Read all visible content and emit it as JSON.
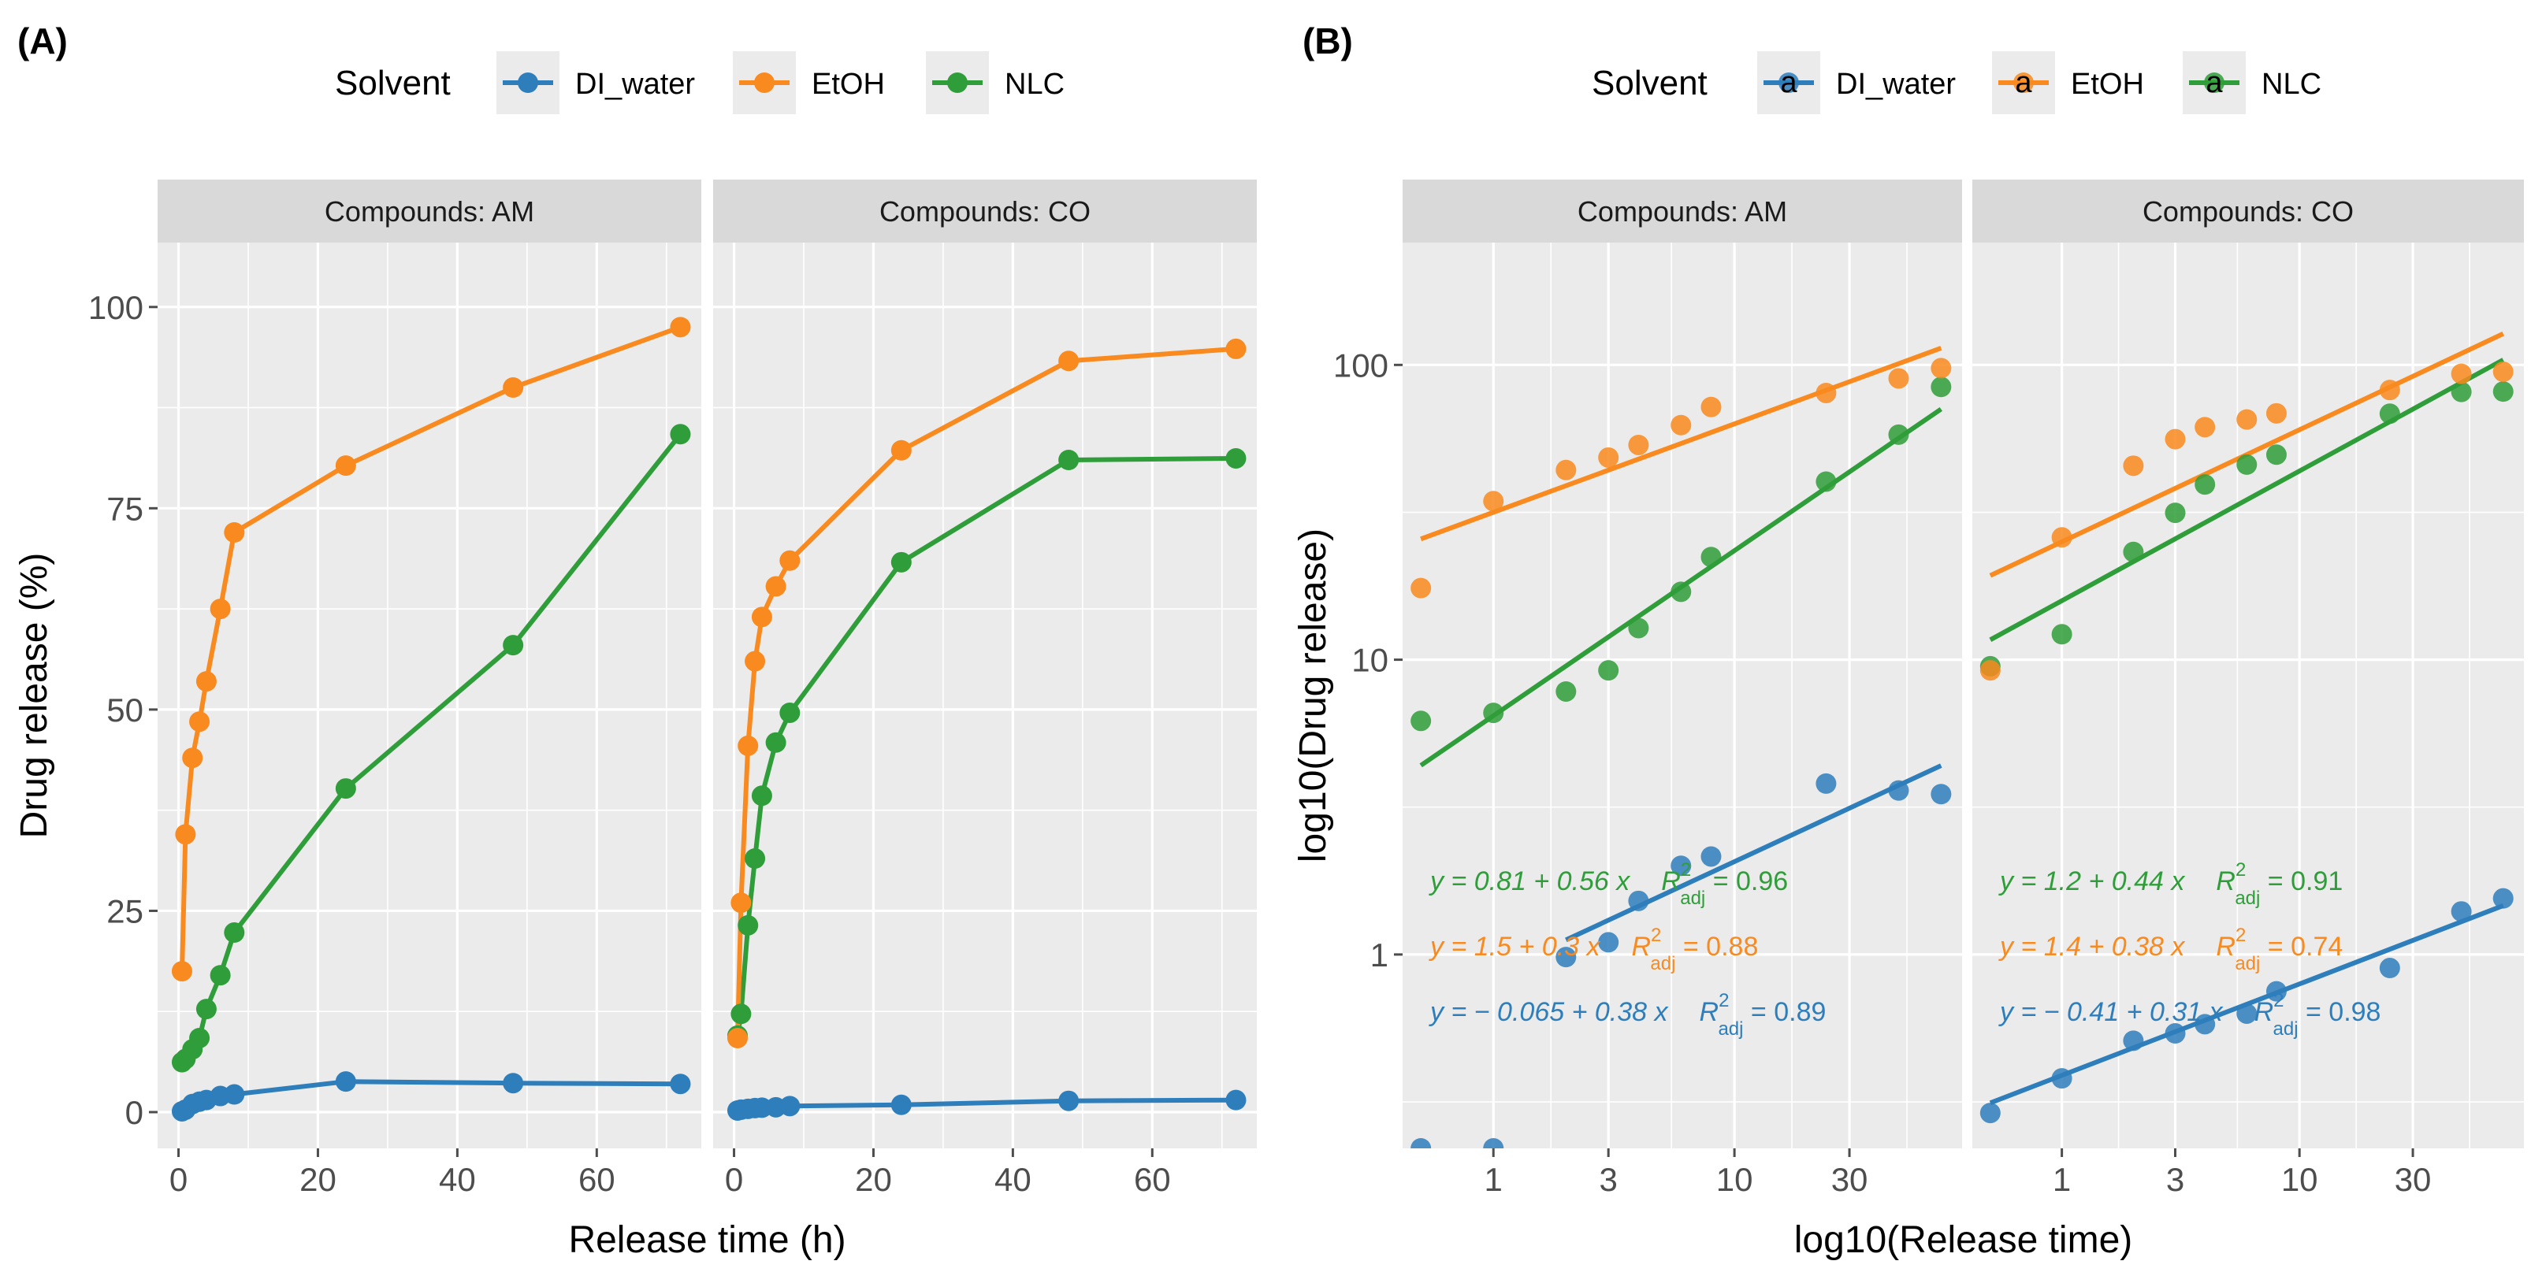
{
  "figure": {
    "panel_a_label": "(A)",
    "panel_b_label": "(B)"
  },
  "legend": {
    "title": "Solvent",
    "entries": [
      "DI_water",
      "EtOH",
      "NLC"
    ],
    "key_glyph": "a"
  },
  "colors": {
    "DI_water": "#2e7ebc",
    "EtOH": "#f98a1f",
    "NLC": "#2f9e3a",
    "panel_bg": "#ebebeb",
    "strip_bg": "#d9d9d9",
    "grid": "#ffffff",
    "tick": "#4d4d4d"
  },
  "chart_data": [
    {
      "type": "line",
      "panel": "A",
      "facets": [
        "Compounds: AM",
        "Compounds: CO"
      ],
      "xlabel": "Release time (h)",
      "ylabel": "Drug release (%)",
      "xlim": [
        -3,
        75
      ],
      "ylim": [
        -4.5,
        108
      ],
      "xticks": [
        0,
        20,
        40,
        60
      ],
      "yticks": [
        0,
        25,
        50,
        75,
        100
      ],
      "xtick_labels": [
        "0",
        "20",
        "40",
        "60"
      ],
      "ytick_labels": [
        "0",
        "25",
        "50",
        "75",
        "100"
      ],
      "x": [
        0.5,
        1,
        2,
        3,
        4,
        6,
        8,
        24,
        48,
        72
      ],
      "series": [
        {
          "facet": "Compounds: AM",
          "name": "DI_water",
          "values": [
            0.1,
            0.3,
            1.0,
            1.3,
            1.5,
            2.0,
            2.2,
            3.8,
            3.6,
            3.5
          ]
        },
        {
          "facet": "Compounds: AM",
          "name": "EtOH",
          "values": [
            17.5,
            34.5,
            44,
            48.5,
            53.5,
            62.5,
            72,
            80.3,
            90,
            97.5
          ]
        },
        {
          "facet": "Compounds: AM",
          "name": "NLC",
          "values": [
            6.2,
            6.6,
            7.8,
            9.2,
            12.8,
            17,
            22.3,
            40.2,
            58,
            84.2
          ]
        },
        {
          "facet": "Compounds: CO",
          "name": "DI_water",
          "values": [
            0.2,
            0.3,
            0.4,
            0.5,
            0.55,
            0.6,
            0.75,
            0.9,
            1.4,
            1.5
          ]
        },
        {
          "facet": "Compounds: CO",
          "name": "EtOH",
          "values": [
            9.2,
            26,
            45.5,
            56,
            61.5,
            65.3,
            68.5,
            82.2,
            93.3,
            94.8
          ]
        },
        {
          "facet": "Compounds: CO",
          "name": "NLC",
          "values": [
            9.5,
            12.2,
            23.2,
            31.5,
            39.3,
            45.9,
            49.6,
            68.3,
            81,
            81.2
          ]
        }
      ]
    },
    {
      "type": "scatter",
      "panel": "B",
      "scale": "log10",
      "facets": [
        "Compounds: AM",
        "Compounds: CO"
      ],
      "xlabel": "log10(Release time)",
      "ylabel": "log10(Drug release)",
      "xlim": [
        0.42,
        88
      ],
      "ylim": [
        0.22,
        260
      ],
      "xticks": [
        1,
        3,
        10,
        30
      ],
      "yticks": [
        1,
        10,
        100
      ],
      "xtick_labels": [
        "1",
        "3",
        "10",
        "30"
      ],
      "ytick_labels": [
        "1",
        "10",
        "100"
      ],
      "x": [
        0.5,
        1,
        2,
        3,
        4,
        6,
        8,
        24,
        48,
        72
      ],
      "series": [
        {
          "facet": "Compounds: AM",
          "name": "DI_water",
          "values": [
            0.22,
            0.22,
            0.98,
            1.1,
            1.52,
            2.0,
            2.15,
            3.8,
            3.6,
            3.5
          ]
        },
        {
          "facet": "Compounds: AM",
          "name": "EtOH",
          "values": [
            17.5,
            34.5,
            44,
            48.5,
            53.5,
            62.5,
            72,
            80.3,
            90,
            97.5
          ]
        },
        {
          "facet": "Compounds: AM",
          "name": "NLC",
          "values": [
            6.2,
            6.6,
            7.8,
            9.2,
            12.8,
            17,
            22.3,
            40.2,
            58,
            84.2
          ]
        },
        {
          "facet": "Compounds: CO",
          "name": "DI_water",
          "values": [
            0.29,
            0.38,
            0.51,
            0.54,
            0.58,
            0.63,
            0.75,
            0.9,
            1.4,
            1.55
          ]
        },
        {
          "facet": "Compounds: CO",
          "name": "EtOH",
          "values": [
            9.2,
            26,
            45.5,
            56,
            61.5,
            65.3,
            68.5,
            82.2,
            93.3,
            94.8
          ]
        },
        {
          "facet": "Compounds: CO",
          "name": "NLC",
          "values": [
            9.5,
            12.2,
            23.2,
            31.5,
            39.3,
            45.9,
            49.6,
            68.3,
            81,
            81.2
          ]
        }
      ],
      "fits": [
        {
          "facet": "Compounds: AM",
          "name": "DI_water",
          "intercept": -0.065,
          "slope": 0.38,
          "x_range": [
            2,
            72
          ]
        },
        {
          "facet": "Compounds: AM",
          "name": "EtOH",
          "intercept": 1.5,
          "slope": 0.3,
          "x_range": [
            0.5,
            72
          ]
        },
        {
          "facet": "Compounds: AM",
          "name": "NLC",
          "intercept": 0.81,
          "slope": 0.56,
          "x_range": [
            0.5,
            72
          ]
        },
        {
          "facet": "Compounds: CO",
          "name": "DI_water",
          "intercept": -0.41,
          "slope": 0.31,
          "x_range": [
            0.5,
            72
          ]
        },
        {
          "facet": "Compounds: CO",
          "name": "EtOH",
          "intercept": 1.4,
          "slope": 0.38,
          "x_range": [
            0.5,
            72
          ]
        },
        {
          "facet": "Compounds: CO",
          "name": "NLC",
          "intercept": 1.2,
          "slope": 0.44,
          "x_range": [
            0.5,
            72
          ]
        }
      ],
      "annotations": [
        {
          "facet": "Compounds: AM",
          "name": "NLC",
          "equation": "y = 0.81 + 0.56 x",
          "r2_label": "R",
          "r2_sup": "2",
          "r2_sub": "adj",
          "r2_value": " = 0.96"
        },
        {
          "facet": "Compounds: AM",
          "name": "EtOH",
          "equation": "y = 1.5 + 0.3 x",
          "r2_label": "R",
          "r2_sup": "2",
          "r2_sub": "adj",
          "r2_value": " = 0.88"
        },
        {
          "facet": "Compounds: AM",
          "name": "DI_water",
          "equation": "y = − 0.065 + 0.38 x",
          "r2_label": "R",
          "r2_sup": "2",
          "r2_sub": "adj",
          "r2_value": " = 0.89"
        },
        {
          "facet": "Compounds: CO",
          "name": "NLC",
          "equation": "y = 1.2 + 0.44 x",
          "r2_label": "R",
          "r2_sup": "2",
          "r2_sub": "adj",
          "r2_value": " = 0.91"
        },
        {
          "facet": "Compounds: CO",
          "name": "EtOH",
          "equation": "y = 1.4 + 0.38 x",
          "r2_label": "R",
          "r2_sup": "2",
          "r2_sub": "adj",
          "r2_value": " = 0.74"
        },
        {
          "facet": "Compounds: CO",
          "name": "DI_water",
          "equation": "y = − 0.41 + 0.31 x",
          "r2_label": "R",
          "r2_sup": "2",
          "r2_sub": "adj",
          "r2_value": " = 0.98"
        }
      ]
    }
  ]
}
